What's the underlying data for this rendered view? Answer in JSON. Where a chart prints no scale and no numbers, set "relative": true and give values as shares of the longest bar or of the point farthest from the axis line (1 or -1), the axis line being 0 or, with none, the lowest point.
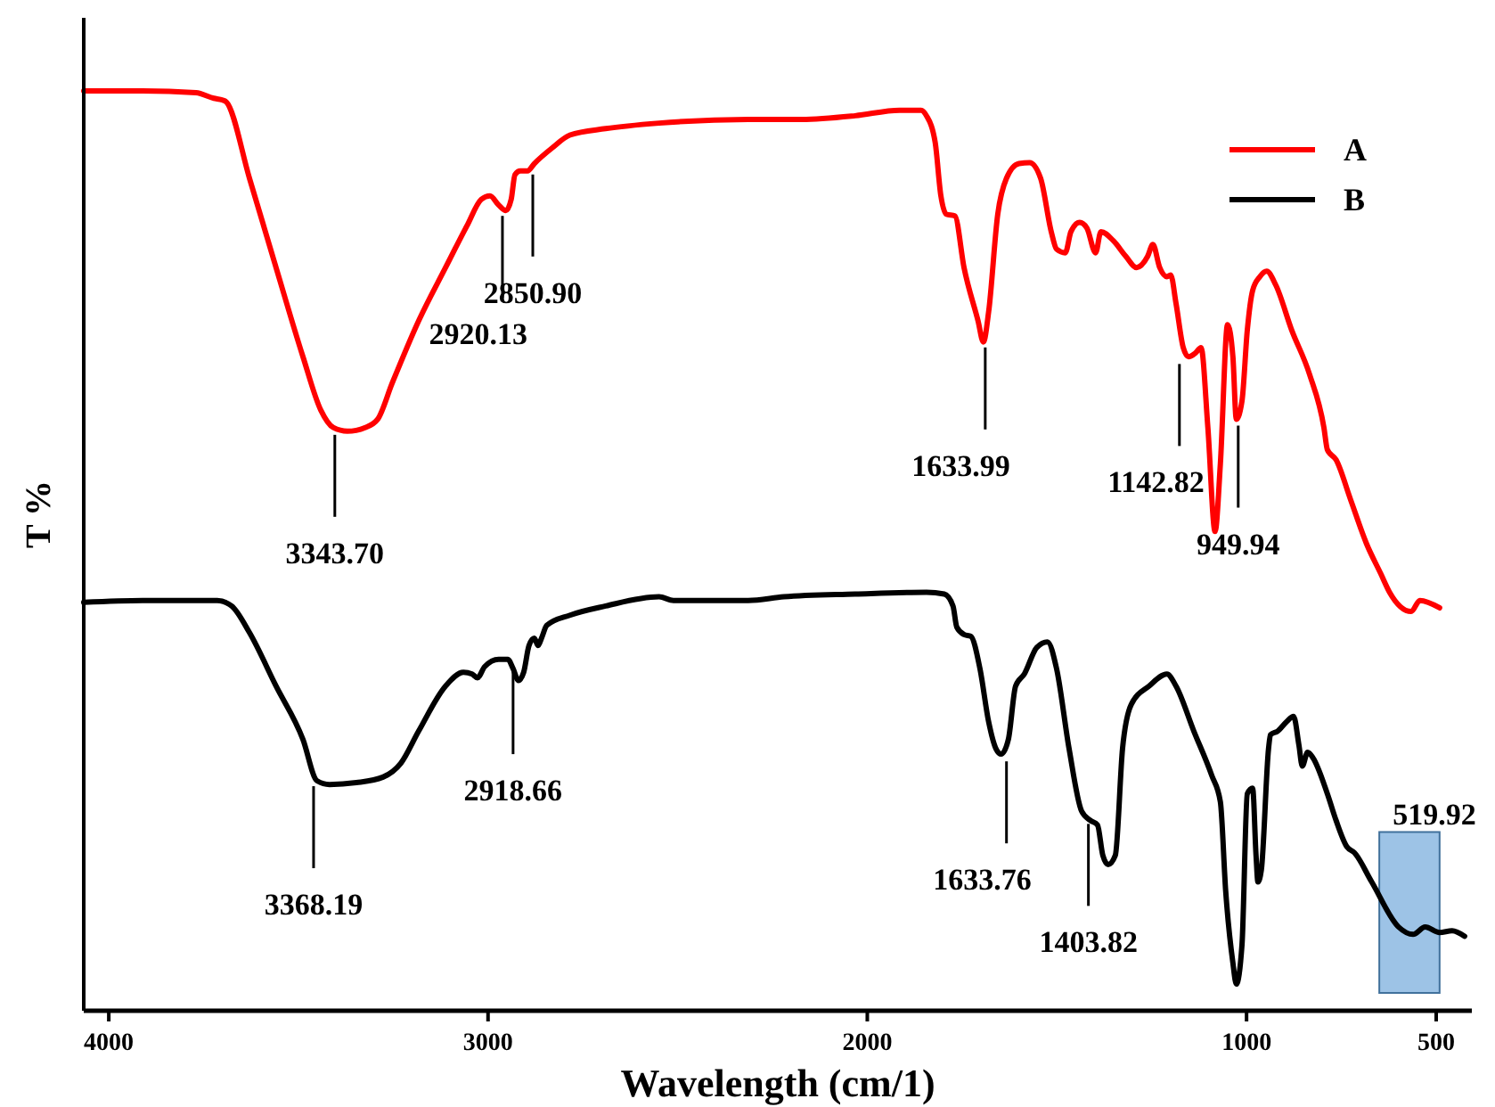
{
  "chart_data": {
    "type": "line",
    "relative": true,
    "xlabel": "Wavelength (cm/1)",
    "ylabel": "T %",
    "xlim": [
      4066,
      406
    ],
    "xticks": [
      4000,
      3000,
      2000,
      1000,
      500
    ],
    "legend": "top right",
    "marker": "none",
    "line_style": "solid",
    "series": [
      {
        "name": "A",
        "color": "#ff0000",
        "x": [
          4066,
          3911,
          3770,
          3723,
          3700,
          3690,
          3629,
          3559,
          3488,
          3441,
          3408,
          3371,
          3324,
          3291,
          3253,
          3183,
          3112,
          3056,
          3018,
          2995,
          2972,
          2953,
          2939,
          2929,
          2915,
          2896,
          2878,
          2831,
          2784,
          2690,
          2549,
          2314,
          2173,
          2032,
          1915,
          1858,
          1844,
          1821,
          1806,
          1792,
          1769,
          1745,
          1708,
          1694,
          1680,
          1656,
          1633,
          1600,
          1572,
          1543,
          1515,
          1501,
          1478,
          1463,
          1440,
          1421,
          1398,
          1384,
          1351,
          1318,
          1290,
          1261,
          1247,
          1229,
          1210,
          1200,
          1186,
          1167,
          1153,
          1135,
          1120,
          1102,
          1083,
          1069,
          1050,
          1036,
          1027,
          1012,
          998,
          984,
          965,
          947,
          923,
          881,
          834,
          796,
          787,
          764,
          726,
          684,
          646,
          623,
          566,
          543,
          491
        ],
        "values": [
          1.0,
          1.0,
          0.998,
          0.992,
          0.99,
          0.988,
          0.905,
          0.808,
          0.711,
          0.653,
          0.634,
          0.63,
          0.634,
          0.643,
          0.682,
          0.75,
          0.808,
          0.853,
          0.882,
          0.886,
          0.876,
          0.87,
          0.882,
          0.909,
          0.913,
          0.913,
          0.921,
          0.938,
          0.952,
          0.959,
          0.965,
          0.969,
          0.969,
          0.973,
          0.979,
          0.979,
          0.973,
          0.944,
          0.886,
          0.866,
          0.864,
          0.808,
          0.75,
          0.727,
          0.76,
          0.866,
          0.905,
          0.921,
          0.922,
          0.905,
          0.847,
          0.828,
          0.824,
          0.847,
          0.857,
          0.851,
          0.824,
          0.847,
          0.837,
          0.82,
          0.808,
          0.82,
          0.833,
          0.808,
          0.798,
          0.8,
          0.769,
          0.721,
          0.711,
          0.715,
          0.721,
          0.634,
          0.521,
          0.595,
          0.746,
          0.711,
          0.643,
          0.663,
          0.74,
          0.783,
          0.798,
          0.804,
          0.789,
          0.74,
          0.692,
          0.634,
          0.61,
          0.599,
          0.556,
          0.508,
          0.475,
          0.455,
          0.434,
          0.446,
          0.438
        ]
      },
      {
        "name": "B",
        "color": "#000000",
        "x": [
          4066,
          3911,
          3770,
          3714,
          3676,
          3629,
          3559,
          3488,
          3451,
          3418,
          3347,
          3277,
          3230,
          3183,
          3112,
          3065,
          3042,
          3028,
          3009,
          2972,
          2948,
          2934,
          2920,
          2906,
          2892,
          2878,
          2868,
          2859,
          2845,
          2784,
          2690,
          2549,
          2511,
          2455,
          2314,
          2220,
          2032,
          1844,
          1797,
          1774,
          1764,
          1745,
          1727,
          1703,
          1680,
          1661,
          1647,
          1628,
          1609,
          1586,
          1553,
          1525,
          1501,
          1468,
          1435,
          1412,
          1393,
          1379,
          1365,
          1346,
          1327,
          1304,
          1257,
          1210,
          1186,
          1139,
          1092,
          1069,
          1055,
          1036,
          1027,
          1012,
          998,
          984,
          975,
          970,
          961,
          942,
          937,
          918,
          895,
          876,
          862,
          853,
          839,
          825,
          787,
          764,
          735,
          716,
          670,
          599,
          561,
          529,
          491,
          458,
          425
        ],
        "values": [
          0.444,
          0.446,
          0.446,
          0.446,
          0.44,
          0.411,
          0.353,
          0.295,
          0.25,
          0.246,
          0.248,
          0.254,
          0.269,
          0.304,
          0.353,
          0.368,
          0.366,
          0.362,
          0.374,
          0.382,
          0.382,
          0.372,
          0.359,
          0.368,
          0.397,
          0.405,
          0.397,
          0.405,
          0.419,
          0.43,
          0.44,
          0.45,
          0.446,
          0.446,
          0.446,
          0.45,
          0.453,
          0.455,
          0.453,
          0.44,
          0.417,
          0.409,
          0.407,
          0.372,
          0.314,
          0.285,
          0.279,
          0.295,
          0.353,
          0.366,
          0.395,
          0.401,
          0.372,
          0.285,
          0.217,
          0.207,
          0.202,
          0.169,
          0.159,
          0.169,
          0.285,
          0.333,
          0.353,
          0.366,
          0.353,
          0.304,
          0.256,
          0.227,
          0.13,
          0.052,
          0.029,
          0.072,
          0.236,
          0.242,
          0.169,
          0.14,
          0.153,
          0.285,
          0.3,
          0.304,
          0.314,
          0.32,
          0.289,
          0.266,
          0.281,
          0.275,
          0.236,
          0.207,
          0.178,
          0.172,
          0.14,
          0.091,
          0.083,
          0.091,
          0.085,
          0.087,
          0.081
        ]
      }
    ],
    "bands": [
      {
        "axis": "x",
        "from": 650,
        "to": 491,
        "label": "519.92",
        "color": "#9dc3e6"
      }
    ],
    "annotations": [
      {
        "text": "3343.70",
        "x": 3404,
        "y": 0.63
      },
      {
        "text": "2920.13",
        "x": 2962,
        "y": 0.868
      },
      {
        "text": "2850.90",
        "x": 2882,
        "y": 0.913
      },
      {
        "text": "1633.99",
        "x": 1689,
        "y": 0.725
      },
      {
        "text": "1142.82",
        "x": 1177,
        "y": 0.707
      },
      {
        "text": "949.94",
        "x": 1022,
        "y": 0.64
      },
      {
        "text": "3368.19",
        "x": 3460,
        "y": 0.248
      },
      {
        "text": "2918.66",
        "x": 2934,
        "y": 0.372
      },
      {
        "text": "1633.76",
        "x": 1633,
        "y": 0.275
      },
      {
        "text": "1403.82",
        "x": 1417,
        "y": 0.207
      }
    ]
  }
}
